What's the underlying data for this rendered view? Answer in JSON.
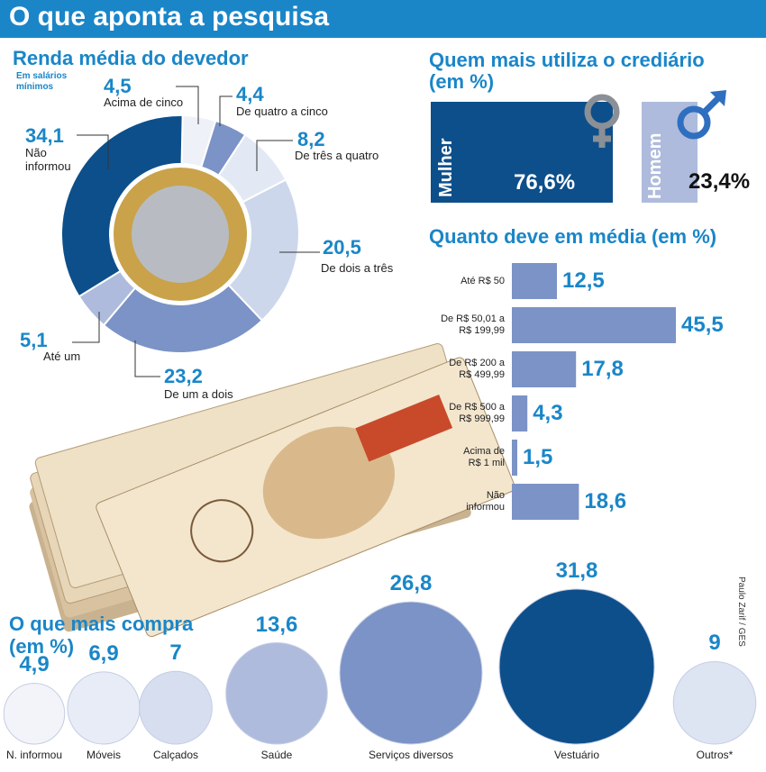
{
  "header": {
    "title": "O que aponta a pesquisa"
  },
  "income": {
    "title": "Renda média do devedor",
    "subtitle_line1": "Em salários",
    "subtitle_line2": "mínimos"
  },
  "credit_use": {
    "title_line1": "Quem mais utiliza o crediário",
    "title_line2": "(em %)"
  },
  "debt": {
    "title": "Quanto deve em média (em %)"
  },
  "purchase": {
    "title_line1": "O que mais compra",
    "title_line2": "(em %)"
  },
  "credit_line": "Paulo Zarif / GES",
  "colors": {
    "accent": "#1a86c8",
    "dark": "#0d4f8b",
    "mid": "#7b93c6",
    "light": "#c9d4ea",
    "pale": "#e7ecf6"
  },
  "chart_data": [
    {
      "type": "pie",
      "title": "Renda média do devedor",
      "subtitle": "Em salários mínimos",
      "slices": [
        {
          "label": "Acima de cinco",
          "value": 4.5,
          "display": "4,5",
          "color": "#eef1f8"
        },
        {
          "label": "De quatro a cinco",
          "value": 4.4,
          "display": "4,4",
          "color": "#7b93c6"
        },
        {
          "label": "De três a quatro",
          "value": 8.2,
          "display": "8,2",
          "color": "#e3e9f4"
        },
        {
          "label": "De dois a três",
          "value": 20.5,
          "display": "20,5",
          "color": "#cdd7eb"
        },
        {
          "label": "De um a dois",
          "value": 23.2,
          "display": "23,2",
          "color": "#7b93c6"
        },
        {
          "label": "Até um",
          "value": 5.1,
          "display": "5,1",
          "color": "#aebbdc"
        },
        {
          "label": "Não informou",
          "value": 34.1,
          "display": "34,1",
          "color": "#0d4f8b"
        }
      ]
    },
    {
      "type": "bar",
      "title": "Quem mais utiliza o crediário (em %)",
      "categories": [
        "Mulher",
        "Homem"
      ],
      "values": [
        76.6,
        23.4
      ],
      "display": [
        "76,6%",
        "23,4%"
      ]
    },
    {
      "type": "bar",
      "orientation": "horizontal",
      "title": "Quanto deve em média (em %)",
      "categories": [
        "Até R$ 50",
        "De R$ 50,01 a R$ 199,99",
        "De R$ 200 a R$ 499,99",
        "De R$ 500 a R$ 999,99",
        "Acima de R$ 1 mil",
        "Não informou"
      ],
      "category_lines": [
        [
          "Até R$ 50"
        ],
        [
          "De R$ 50,01 a",
          "R$ 199,99"
        ],
        [
          "De R$ 200 a",
          "R$ 499,99"
        ],
        [
          "De R$ 500 a",
          "R$ 999,99"
        ],
        [
          "Acima de",
          "R$ 1 mil"
        ],
        [
          "Não",
          "informou"
        ]
      ],
      "values": [
        12.5,
        45.5,
        17.8,
        4.3,
        1.5,
        18.6
      ],
      "display": [
        "12,5",
        "45,5",
        "17,8",
        "4,3",
        "1,5",
        "18,6"
      ]
    },
    {
      "type": "bubble",
      "title": "O que mais compra (em %)",
      "categories": [
        "N. informou",
        "Móveis",
        "Calçados",
        "Saúde",
        "Serviços diversos",
        "Vestuário",
        "Outros*"
      ],
      "values": [
        4.9,
        6.9,
        7,
        13.6,
        26.8,
        31.8,
        9
      ],
      "display": [
        "4,9",
        "6,9",
        "7",
        "13,6",
        "26,8",
        "31,8",
        "9"
      ]
    }
  ]
}
